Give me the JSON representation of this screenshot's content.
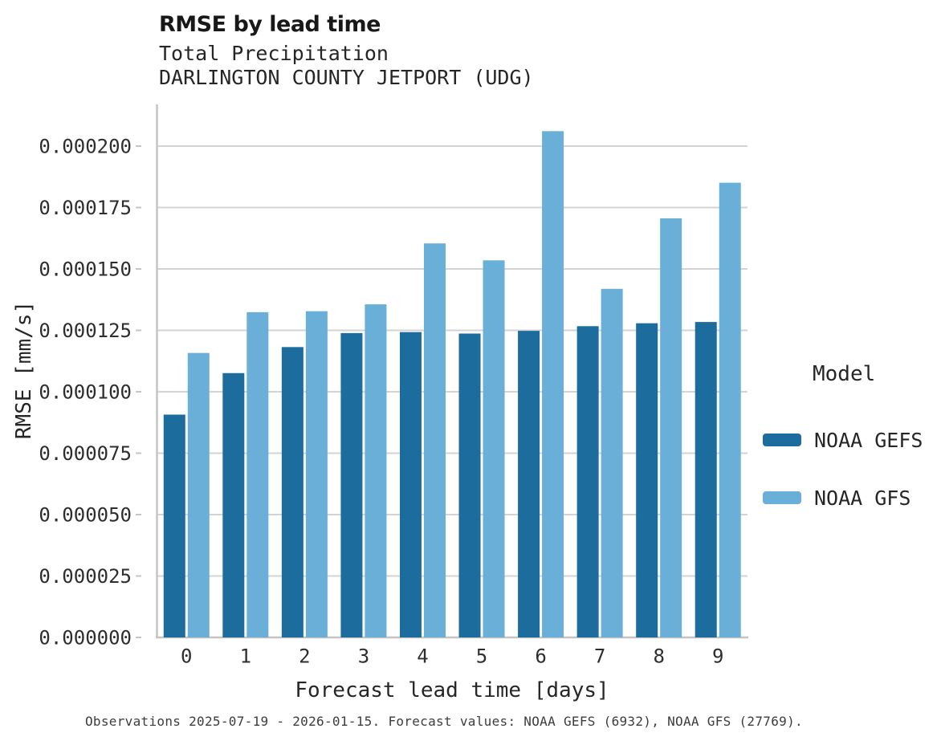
{
  "page": {
    "background": "#ffffff"
  },
  "header": {
    "title": "RMSE by lead time",
    "subtitle1": "Total Precipitation",
    "subtitle2": "DARLINGTON COUNTY JETPORT (UDG)"
  },
  "chart_data": {
    "type": "bar",
    "title": "RMSE by lead time",
    "subtitle": [
      "Total Precipitation",
      "DARLINGTON COUNTY JETPORT (UDG)"
    ],
    "categories": [
      "0",
      "1",
      "2",
      "3",
      "4",
      "5",
      "6",
      "7",
      "8",
      "9"
    ],
    "series": [
      {
        "name": "NOAA GEFS",
        "color": "#1c6d9e",
        "values": [
          9.07e-05,
          0.0001076,
          0.0001182,
          0.0001239,
          0.0001243,
          0.0001237,
          0.0001248,
          0.0001267,
          0.0001279,
          0.0001284
        ]
      },
      {
        "name": "NOAA GFS",
        "color": "#69afd8",
        "values": [
          0.0001158,
          0.0001324,
          0.0001328,
          0.0001356,
          0.0001604,
          0.0001535,
          0.0002061,
          0.0001419,
          0.0001706,
          0.0001851
        ]
      }
    ],
    "xlabel": "Forecast lead time [days]",
    "ylabel": "RMSE [mm/s]",
    "ylim": [
      0,
      0.000217
    ],
    "yticks": [
      0,
      2.5e-05,
      5e-05,
      7.5e-05,
      0.0001,
      0.000125,
      0.00015,
      0.000175,
      0.0002
    ],
    "ytick_labels": [
      "0.000000",
      "0.000025",
      "0.000050",
      "0.000075",
      "0.000100",
      "0.000125",
      "0.000150",
      "0.000175",
      "0.000200"
    ],
    "grid": "horizontal",
    "grid_color": "#d3d3d3",
    "axis_color": "#c4c4c4",
    "tick_label_color": "#2e2e2e",
    "legend_position": "right",
    "legend_title": "Model"
  },
  "legend": {
    "title": "Model",
    "items": [
      {
        "label": "NOAA GEFS",
        "color": "#1c6d9e"
      },
      {
        "label": "NOAA GFS",
        "color": "#69afd8"
      }
    ]
  },
  "footer": {
    "caption": "Observations 2025-07-19 - 2026-01-15. Forecast values: NOAA GEFS (6932), NOAA GFS (27769)."
  }
}
